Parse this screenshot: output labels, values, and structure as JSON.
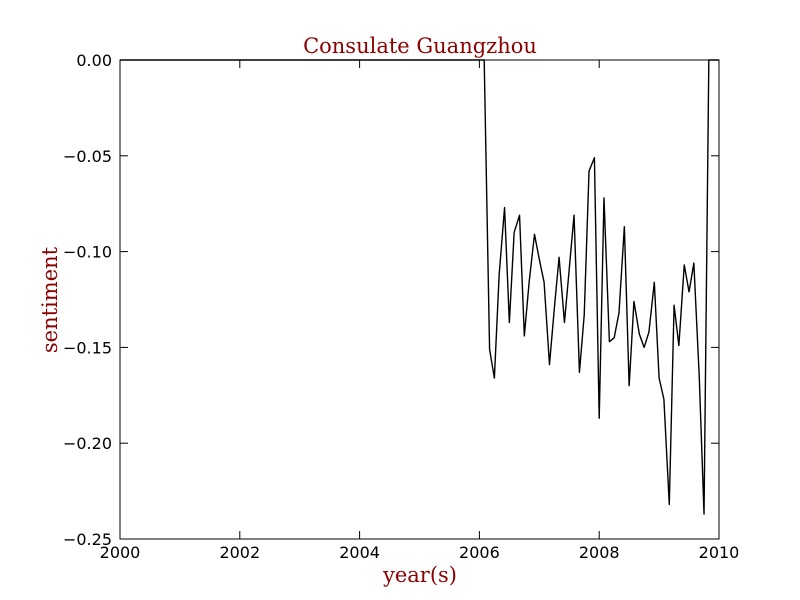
{
  "chart_data": {
    "type": "line",
    "title": "Consulate Guangzhou",
    "xlabel": "year(s)",
    "ylabel": "sentiment",
    "xlim": [
      2000,
      2010
    ],
    "ylim": [
      -0.25,
      0.0
    ],
    "xticks": [
      2000,
      2002,
      2004,
      2006,
      2008,
      2010
    ],
    "xtick_labels": [
      "2000",
      "2002",
      "2004",
      "2006",
      "2008",
      "2010"
    ],
    "yticks": [
      0.0,
      -0.05,
      -0.1,
      -0.15,
      -0.2,
      -0.25
    ],
    "ytick_labels": [
      "0.00",
      "−0.05",
      "−0.10",
      "−0.15",
      "−0.20",
      "−0.25"
    ],
    "grid": false,
    "legend": "none",
    "colors": {
      "text_accent": "#8b0000",
      "line": "#000000",
      "axes": "#000000"
    },
    "series": [
      {
        "x": [
          2000.0,
          2006.08,
          2006.17,
          2006.25,
          2006.33,
          2006.42,
          2006.5,
          2006.58,
          2006.67,
          2006.75,
          2006.83,
          2006.92,
          2007.0,
          2007.08,
          2007.17,
          2007.25,
          2007.33,
          2007.42,
          2007.5,
          2007.58,
          2007.67,
          2007.75,
          2007.83,
          2007.92,
          2008.0,
          2008.08,
          2008.17,
          2008.25,
          2008.33,
          2008.42,
          2008.5,
          2008.58,
          2008.67,
          2008.75,
          2008.83,
          2008.92,
          2009.0,
          2009.08,
          2009.17,
          2009.25,
          2009.33,
          2009.42,
          2009.5,
          2009.58,
          2009.67,
          2009.75,
          2009.83,
          2010.0
        ],
        "y": [
          0.0,
          0.0,
          -0.151,
          -0.166,
          -0.112,
          -0.077,
          -0.137,
          -0.09,
          -0.081,
          -0.144,
          -0.116,
          -0.091,
          -0.104,
          -0.116,
          -0.159,
          -0.13,
          -0.103,
          -0.137,
          -0.109,
          -0.081,
          -0.163,
          -0.133,
          -0.058,
          -0.051,
          -0.187,
          -0.072,
          -0.147,
          -0.145,
          -0.132,
          -0.087,
          -0.17,
          -0.126,
          -0.143,
          -0.15,
          -0.142,
          -0.116,
          -0.166,
          -0.177,
          -0.232,
          -0.128,
          -0.149,
          -0.107,
          -0.121,
          -0.106,
          -0.165,
          -0.237,
          0.0,
          0.0
        ]
      }
    ]
  }
}
